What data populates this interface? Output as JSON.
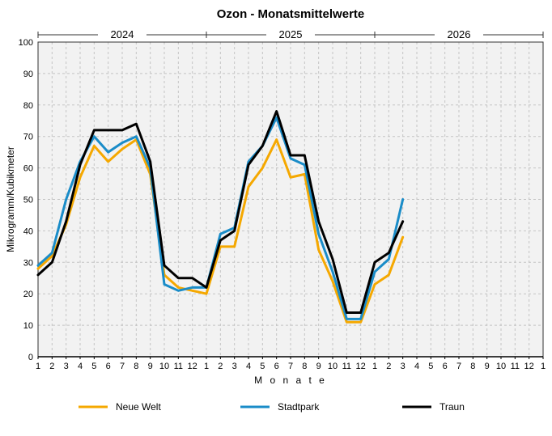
{
  "chart_data": {
    "type": "line",
    "title": "Ozon - Monatsmittelwerte",
    "xlabel": "M o n a t e",
    "ylabel": "Mikrogramm/Kubikmeter",
    "ylim": [
      0,
      100
    ],
    "yticks": [
      "0",
      "10",
      "20",
      "30",
      "40",
      "50",
      "60",
      "70",
      "80",
      "90",
      "100"
    ],
    "years": [
      "2024",
      "2025",
      "2026"
    ],
    "months": [
      "1",
      "2",
      "3",
      "4",
      "5",
      "6",
      "7",
      "8",
      "9",
      "10",
      "11",
      "12"
    ],
    "grid": true,
    "legend_position": "bottom",
    "series": [
      {
        "name": "Neue Welt",
        "color": "#f5a800",
        "values": [
          28,
          32,
          42,
          57,
          67,
          62,
          66,
          69,
          58,
          26,
          22,
          21,
          20,
          35,
          35,
          54,
          60,
          69,
          57,
          58,
          34,
          24,
          11,
          11,
          23,
          26,
          38
        ]
      },
      {
        "name": "Stadtpark",
        "color": "#1a8cc8",
        "values": [
          29,
          33,
          50,
          62,
          70,
          65,
          68,
          70,
          60,
          23,
          21,
          22,
          22,
          39,
          41,
          62,
          67,
          76,
          63,
          61,
          39,
          27,
          12,
          12,
          27,
          31,
          50
        ]
      },
      {
        "name": "Traun",
        "color": "#000000",
        "values": [
          26,
          30,
          43,
          61,
          72,
          72,
          72,
          74,
          62,
          29,
          25,
          25,
          22,
          37,
          40,
          61,
          67,
          78,
          64,
          64,
          43,
          31,
          14,
          14,
          30,
          33,
          43
        ]
      }
    ]
  }
}
